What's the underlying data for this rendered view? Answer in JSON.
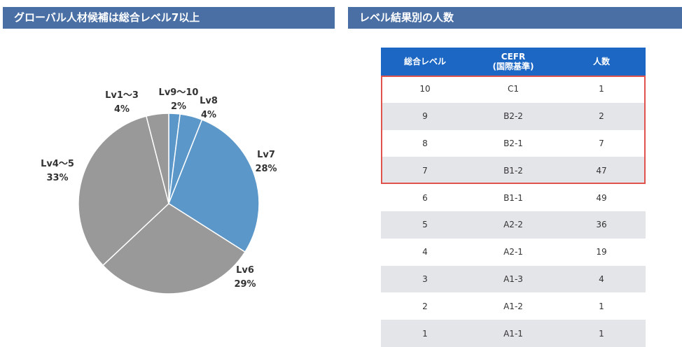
{
  "left_panel": {
    "title": "グローバル人材候補は総合レベル7以上"
  },
  "right_panel": {
    "title": "レベル結果別の人数"
  },
  "colors": {
    "header_bg": "#4a6fa5",
    "table_header_bg": "#1c67c4",
    "highlight_border": "#e0534d",
    "slice_blue": "#5b97c9",
    "slice_gray": "#999999"
  },
  "chart_data": {
    "type": "pie",
    "title": "",
    "slices": [
      {
        "label": "Lv9〜10",
        "percent_label": "2%",
        "value": 2,
        "color": "#5b97c9"
      },
      {
        "label": "Lv8",
        "percent_label": "4%",
        "value": 4,
        "color": "#5b97c9"
      },
      {
        "label": "Lv7",
        "percent_label": "28%",
        "value": 28,
        "color": "#5b97c9"
      },
      {
        "label": "Lv6",
        "percent_label": "29%",
        "value": 29,
        "color": "#999999"
      },
      {
        "label": "Lv4〜5",
        "percent_label": "33%",
        "value": 33,
        "color": "#999999"
      },
      {
        "label": "Lv1〜3",
        "percent_label": "4%",
        "value": 4,
        "color": "#999999"
      }
    ]
  },
  "table": {
    "headers": [
      "総合レベル",
      "CEFR\n(国際基準)",
      "人数"
    ],
    "header_lines": {
      "cefr_line1": "CEFR",
      "cefr_line2": "(国際基準)"
    },
    "rows": [
      {
        "level": "10",
        "cefr": "C1",
        "count": "1"
      },
      {
        "level": "9",
        "cefr": "B2-2",
        "count": "2"
      },
      {
        "level": "8",
        "cefr": "B2-1",
        "count": "7"
      },
      {
        "level": "7",
        "cefr": "B1-2",
        "count": "47"
      },
      {
        "level": "6",
        "cefr": "B1-1",
        "count": "49"
      },
      {
        "level": "5",
        "cefr": "A2-2",
        "count": "36"
      },
      {
        "level": "4",
        "cefr": "A2-1",
        "count": "19"
      },
      {
        "level": "3",
        "cefr": "A1-3",
        "count": "4"
      },
      {
        "level": "2",
        "cefr": "A1-2",
        "count": "1"
      },
      {
        "level": "1",
        "cefr": "A1-1",
        "count": "1"
      }
    ]
  }
}
